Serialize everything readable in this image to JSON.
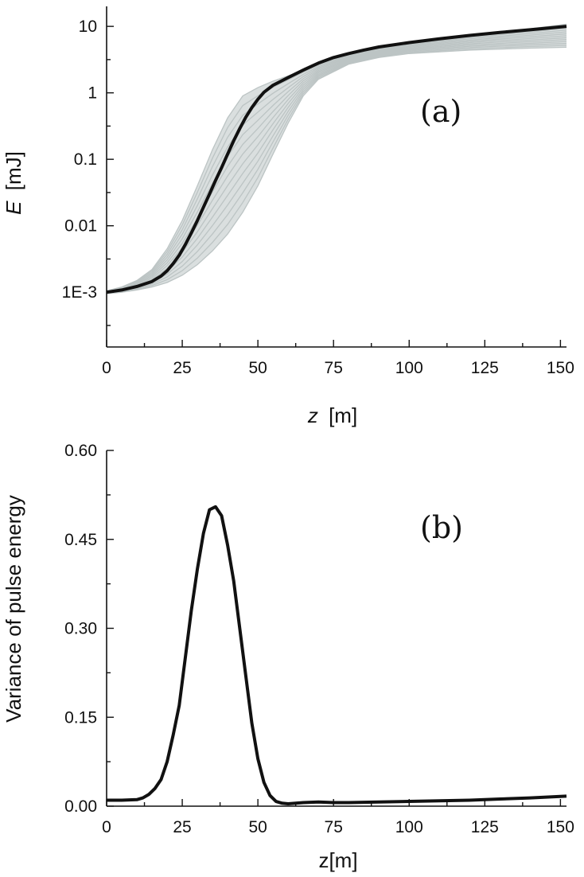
{
  "chart_data": [
    {
      "type": "line",
      "panel_label": "(a)",
      "xlabel_var": "z",
      "xlabel_unit": "[m]",
      "ylabel_var": "E",
      "ylabel_unit": "[mJ]",
      "xlim": [
        0,
        152
      ],
      "ylim": [
        0.00015,
        20
      ],
      "yscale": "log",
      "grid": false,
      "x_ticks": [
        0,
        25,
        50,
        75,
        100,
        125,
        150
      ],
      "x_tick_labels": [
        "0",
        "25",
        "50",
        "75",
        "100",
        "125",
        "150"
      ],
      "y_ticks": [
        0.001,
        0.01,
        0.1,
        1,
        10
      ],
      "y_tick_labels": [
        "1E-3",
        "0.01",
        "0.1",
        "1",
        "10"
      ],
      "colors": {
        "mean": "#111111",
        "shots": "#bcc4c4"
      },
      "series": [
        {
          "role": "mean",
          "x": [
            0,
            5,
            10,
            15,
            18,
            20,
            22,
            24,
            26,
            28,
            30,
            32,
            34,
            36,
            38,
            40,
            42,
            44,
            46,
            48,
            50,
            52,
            55,
            60,
            65,
            70,
            75,
            80,
            85,
            90,
            100,
            110,
            120,
            130,
            140,
            152
          ],
          "y": [
            0.001,
            0.00108,
            0.00122,
            0.00145,
            0.00175,
            0.0021,
            0.0027,
            0.0036,
            0.0052,
            0.0078,
            0.012,
            0.019,
            0.03,
            0.048,
            0.075,
            0.12,
            0.19,
            0.29,
            0.43,
            0.6,
            0.8,
            1.02,
            1.3,
            1.7,
            2.2,
            2.8,
            3.4,
            3.9,
            4.4,
            4.9,
            5.7,
            6.5,
            7.3,
            8.1,
            8.9,
            10.0
          ]
        },
        {
          "role": "shots",
          "note_envelope": "upper",
          "x": [
            0,
            5,
            10,
            15,
            20,
            25,
            30,
            35,
            40,
            45,
            50,
            55,
            60,
            65,
            70,
            80,
            90,
            100,
            120,
            140,
            152
          ],
          "y": [
            0.00105,
            0.0012,
            0.0015,
            0.0022,
            0.0045,
            0.012,
            0.04,
            0.14,
            0.42,
            0.9,
            1.2,
            1.5,
            1.8,
            2.2,
            2.7,
            3.7,
            4.7,
            5.6,
            7.4,
            9.2,
            10.8
          ]
        },
        {
          "role": "shots",
          "note_envelope": "lower",
          "x": [
            0,
            5,
            10,
            15,
            20,
            25,
            30,
            35,
            40,
            45,
            50,
            55,
            60,
            65,
            70,
            80,
            90,
            100,
            120,
            140,
            152
          ],
          "y": [
            0.00095,
            0.001,
            0.00108,
            0.0012,
            0.0014,
            0.0018,
            0.0026,
            0.0042,
            0.0075,
            0.016,
            0.04,
            0.12,
            0.35,
            0.9,
            1.6,
            2.7,
            3.4,
            3.9,
            4.4,
            4.7,
            4.85
          ]
        }
      ]
    },
    {
      "type": "line",
      "panel_label": "(b)",
      "xlabel": "z[m]",
      "ylabel": "Variance of pulse energy",
      "xlim": [
        0,
        152
      ],
      "ylim": [
        0,
        0.6
      ],
      "grid": false,
      "x_ticks": [
        0,
        25,
        50,
        75,
        100,
        125,
        150
      ],
      "x_tick_labels": [
        "0",
        "25",
        "50",
        "75",
        "100",
        "125",
        "150"
      ],
      "y_ticks": [
        0,
        0.15,
        0.3,
        0.45,
        0.6
      ],
      "y_tick_labels": [
        "0.00",
        "0.15",
        "0.30",
        "0.45",
        "0.60"
      ],
      "colors": {
        "line": "#111111"
      },
      "series": [
        {
          "x": [
            0,
            5,
            10,
            12,
            14,
            16,
            18,
            20,
            22,
            24,
            26,
            28,
            30,
            32,
            34,
            36,
            38,
            40,
            42,
            44,
            46,
            48,
            50,
            52,
            54,
            56,
            58,
            60,
            65,
            70,
            75,
            80,
            90,
            100,
            110,
            120,
            130,
            140,
            152
          ],
          "y": [
            0.01,
            0.01,
            0.011,
            0.014,
            0.02,
            0.03,
            0.045,
            0.075,
            0.12,
            0.17,
            0.25,
            0.33,
            0.4,
            0.46,
            0.5,
            0.505,
            0.49,
            0.44,
            0.38,
            0.3,
            0.22,
            0.14,
            0.08,
            0.04,
            0.018,
            0.008,
            0.005,
            0.004,
            0.006,
            0.007,
            0.006,
            0.006,
            0.007,
            0.008,
            0.009,
            0.01,
            0.012,
            0.014,
            0.017
          ]
        }
      ]
    }
  ]
}
